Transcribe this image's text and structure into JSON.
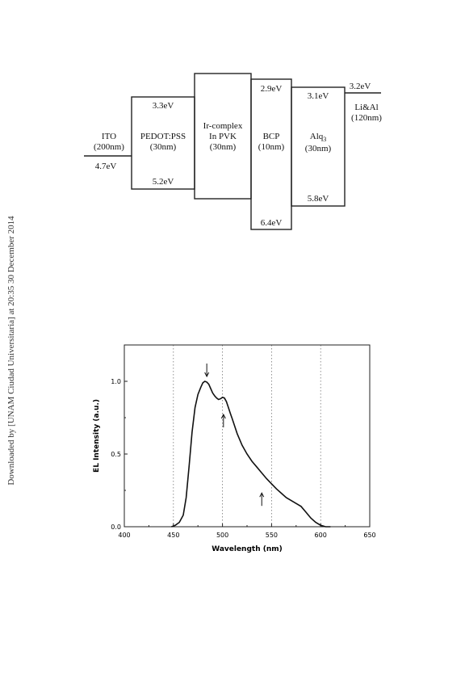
{
  "watermark": "Downloaded by [UNAM Ciudad Universitaria] at 20:35 30 December 2014",
  "energy_diagram": {
    "layers": [
      {
        "name": "ITO",
        "thickness": "(200nm)",
        "level": "4.7eV"
      },
      {
        "name": "PEDOT:PSS",
        "thickness": "(30nm)",
        "lumo": "3.3eV",
        "homo": "5.2eV"
      },
      {
        "name": "Ir-complex",
        "name2": "In PVK",
        "thickness": "(30nm)"
      },
      {
        "name": "BCP",
        "thickness": "(10nm)",
        "lumo": "2.9eV",
        "homo": "6.4eV"
      },
      {
        "name": "Alq",
        "sub": "3",
        "thickness": "(30nm)",
        "lumo": "3.1eV",
        "homo": "5.8eV"
      },
      {
        "name": "Li&Al",
        "thickness": "(120nm)",
        "level": "3.2eV"
      }
    ]
  },
  "chart_data": {
    "type": "line",
    "xlabel": "Wavelength (nm)",
    "ylabel": "EL Intensity (a.u.)",
    "xlim": [
      400,
      650
    ],
    "ylim": [
      0,
      1.25
    ],
    "xticks": [
      400,
      450,
      500,
      550,
      600,
      650
    ],
    "xtick_labels": [
      "400",
      "450",
      "500",
      "550",
      "600",
      "650"
    ],
    "yticks": [
      0,
      0.5,
      1.0
    ],
    "ytick_labels": [
      "0.0",
      "0.5",
      "1.0"
    ],
    "grid_x": [
      450,
      500,
      550,
      600
    ],
    "series": [
      {
        "x": [
          448,
          452,
          456,
          460,
          463,
          466,
          469,
          472,
          475,
          478,
          480,
          482,
          484,
          486,
          488,
          490,
          492,
          494,
          496,
          498,
          500,
          502,
          504,
          506,
          508,
          510,
          515,
          520,
          525,
          530,
          535,
          540,
          545,
          550,
          555,
          560,
          565,
          570,
          575,
          580,
          585,
          590,
          595,
          600,
          605,
          610
        ],
        "y": [
          0.0,
          0.01,
          0.03,
          0.08,
          0.2,
          0.42,
          0.65,
          0.82,
          0.91,
          0.96,
          0.99,
          1.0,
          0.995,
          0.98,
          0.95,
          0.92,
          0.9,
          0.885,
          0.875,
          0.88,
          0.89,
          0.885,
          0.86,
          0.82,
          0.78,
          0.74,
          0.64,
          0.56,
          0.5,
          0.45,
          0.41,
          0.37,
          0.33,
          0.295,
          0.26,
          0.23,
          0.2,
          0.18,
          0.16,
          0.14,
          0.1,
          0.06,
          0.03,
          0.01,
          0.0,
          0.0
        ]
      }
    ],
    "arrows": [
      {
        "x": 484,
        "y": 1.0,
        "direction": "down"
      },
      {
        "x": 501,
        "y": 0.8,
        "direction": "up"
      },
      {
        "x": 540,
        "y": 0.26,
        "direction": "up"
      }
    ]
  }
}
